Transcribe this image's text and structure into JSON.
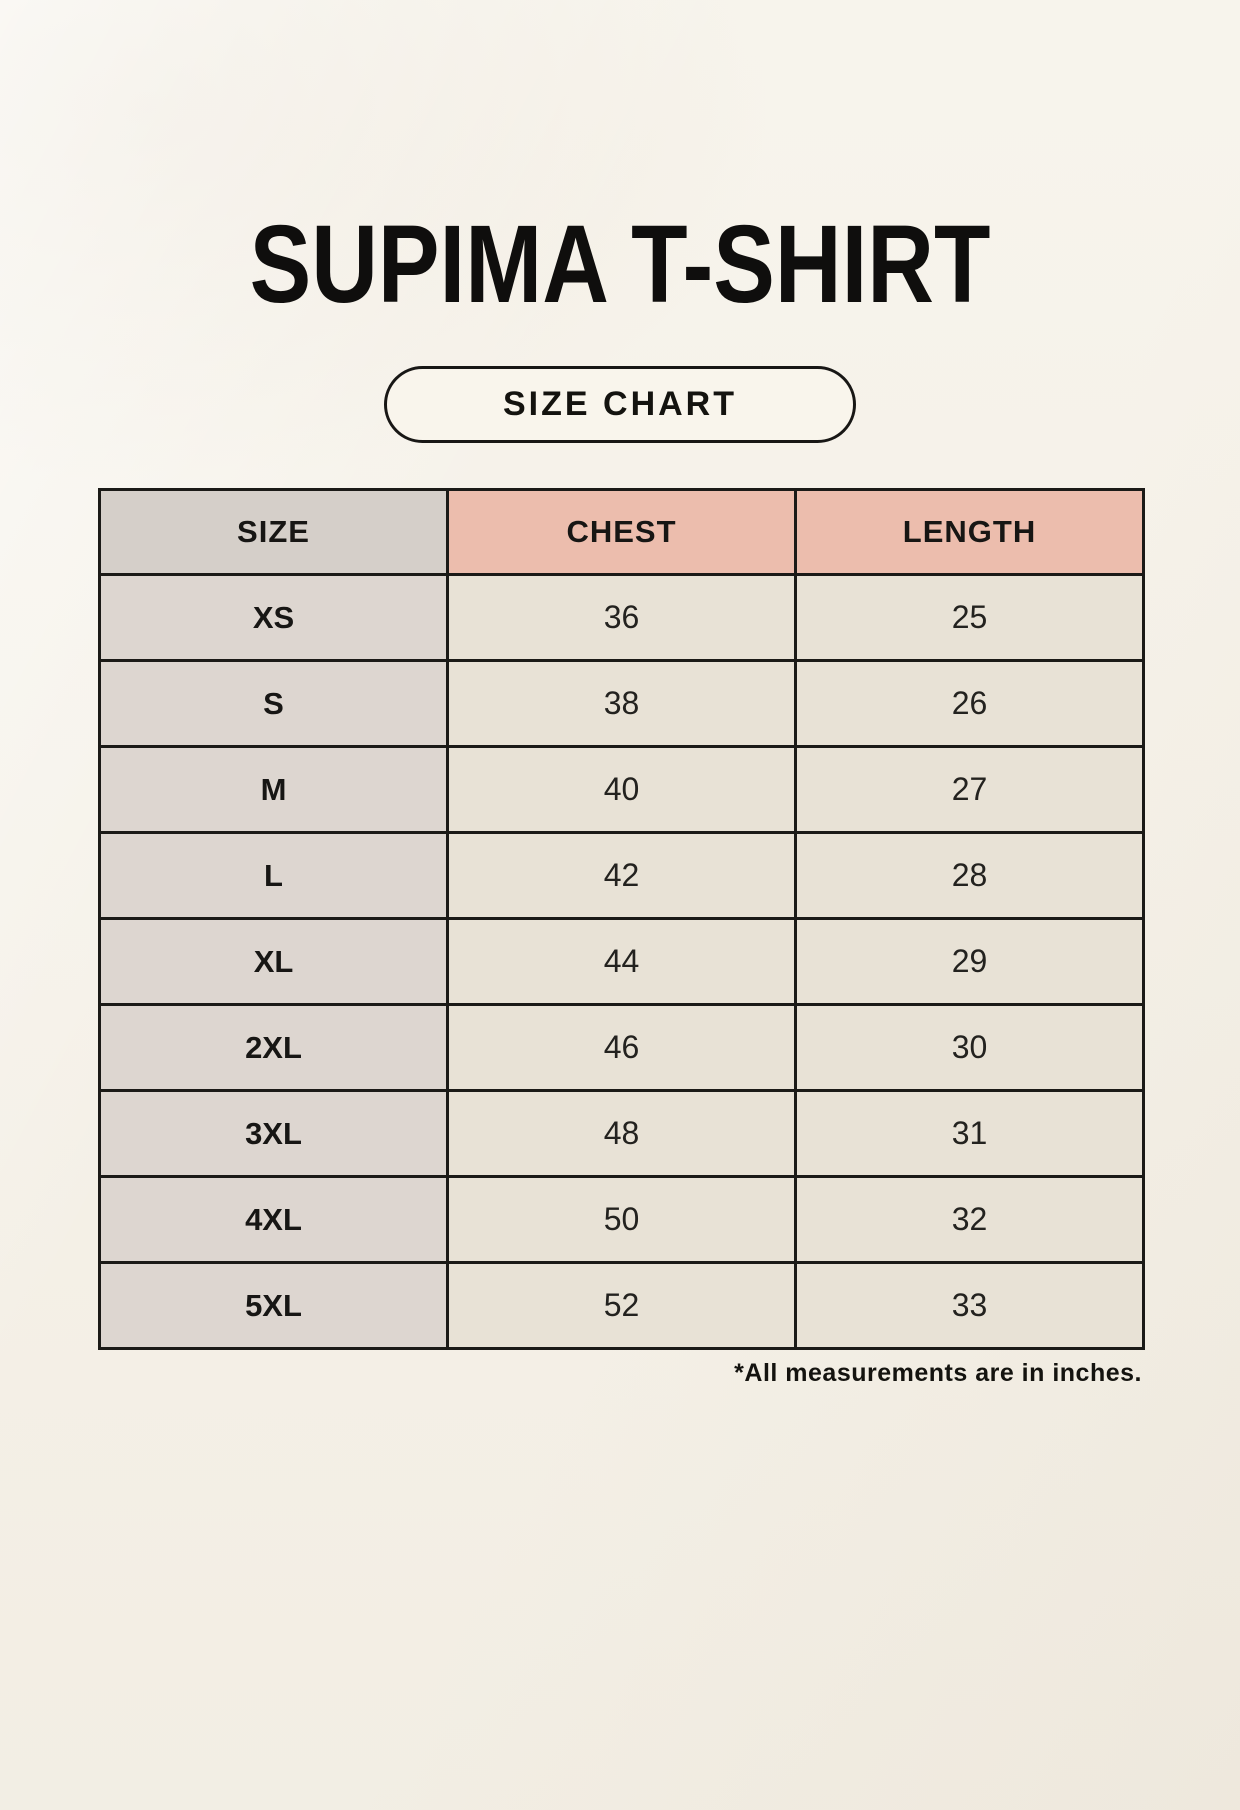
{
  "header": {
    "title": "SUPIMA T-SHIRT",
    "size_chart_label": "SIZE CHART"
  },
  "table": {
    "headers": {
      "size": "SIZE",
      "chest": "CHEST",
      "length": "LENGTH"
    },
    "rows": [
      {
        "size": "XS",
        "chest": 36,
        "length": 25
      },
      {
        "size": "S",
        "chest": 38,
        "length": 26
      },
      {
        "size": "M",
        "chest": 40,
        "length": 27
      },
      {
        "size": "L",
        "chest": 42,
        "length": 28
      },
      {
        "size": "XL",
        "chest": 44,
        "length": 29
      },
      {
        "size": "2XL",
        "chest": 46,
        "length": 30
      },
      {
        "size": "3XL",
        "chest": 48,
        "length": 31
      },
      {
        "size": "4XL",
        "chest": 50,
        "length": 32
      },
      {
        "size": "5XL",
        "chest": 52,
        "length": 33
      }
    ],
    "units_note": "*All measurements are in inches."
  },
  "colors": {
    "page_background": "#f6f2e9",
    "header_accent": "#ecbdad",
    "header_size_bg": "#d5cfc9",
    "size_column_bg": "#ddd6d0",
    "value_cell_bg": "#e8e2d6",
    "table_border": "#1b1a17",
    "text": "#161616"
  }
}
